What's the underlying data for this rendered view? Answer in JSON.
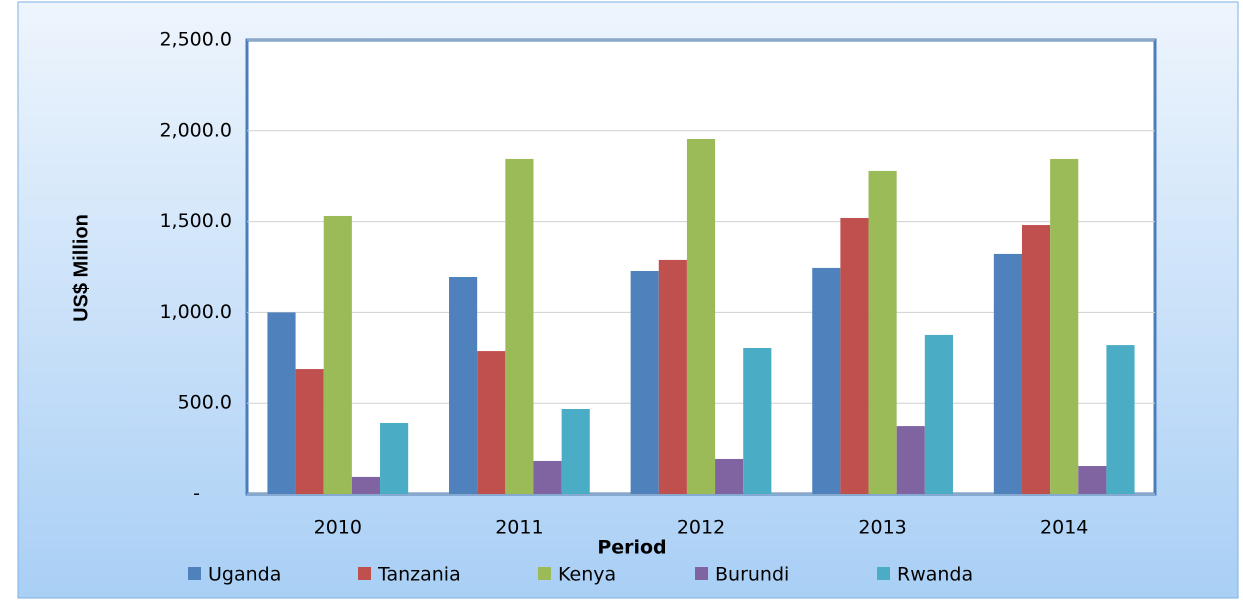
{
  "chart_data": {
    "type": "bar",
    "x_label": "Period",
    "y_label": "US$ Million",
    "categories": [
      "2010",
      "2011",
      "2012",
      "2013",
      "2014"
    ],
    "series": [
      {
        "name": "Uganda",
        "color": "#4f81bd",
        "values": [
          1000,
          1195,
          1228,
          1245,
          1322
        ]
      },
      {
        "name": "Tanzania",
        "color": "#c0504d",
        "values": [
          688,
          787,
          1289,
          1520,
          1481
        ]
      },
      {
        "name": "Kenya",
        "color": "#9bbb59",
        "values": [
          1531,
          1845,
          1955,
          1779,
          1845
        ]
      },
      {
        "name": "Burundi",
        "color": "#8064a2",
        "values": [
          94,
          182,
          193,
          374,
          154
        ]
      },
      {
        "name": "Rwanda",
        "color": "#4bacc6",
        "values": [
          391,
          468,
          804,
          876,
          820
        ]
      }
    ],
    "ylim": [
      0,
      2500
    ],
    "yticks": [
      {
        "value": 0,
        "label": "-"
      },
      {
        "value": 500,
        "label": "500.0"
      },
      {
        "value": 1000,
        "label": "1,000.0"
      },
      {
        "value": 1500,
        "label": "1,500.0"
      },
      {
        "value": 2000,
        "label": "2,000.0"
      },
      {
        "value": 2500,
        "label": "2,500.0"
      }
    ],
    "grid": true,
    "legend": "bottom"
  }
}
